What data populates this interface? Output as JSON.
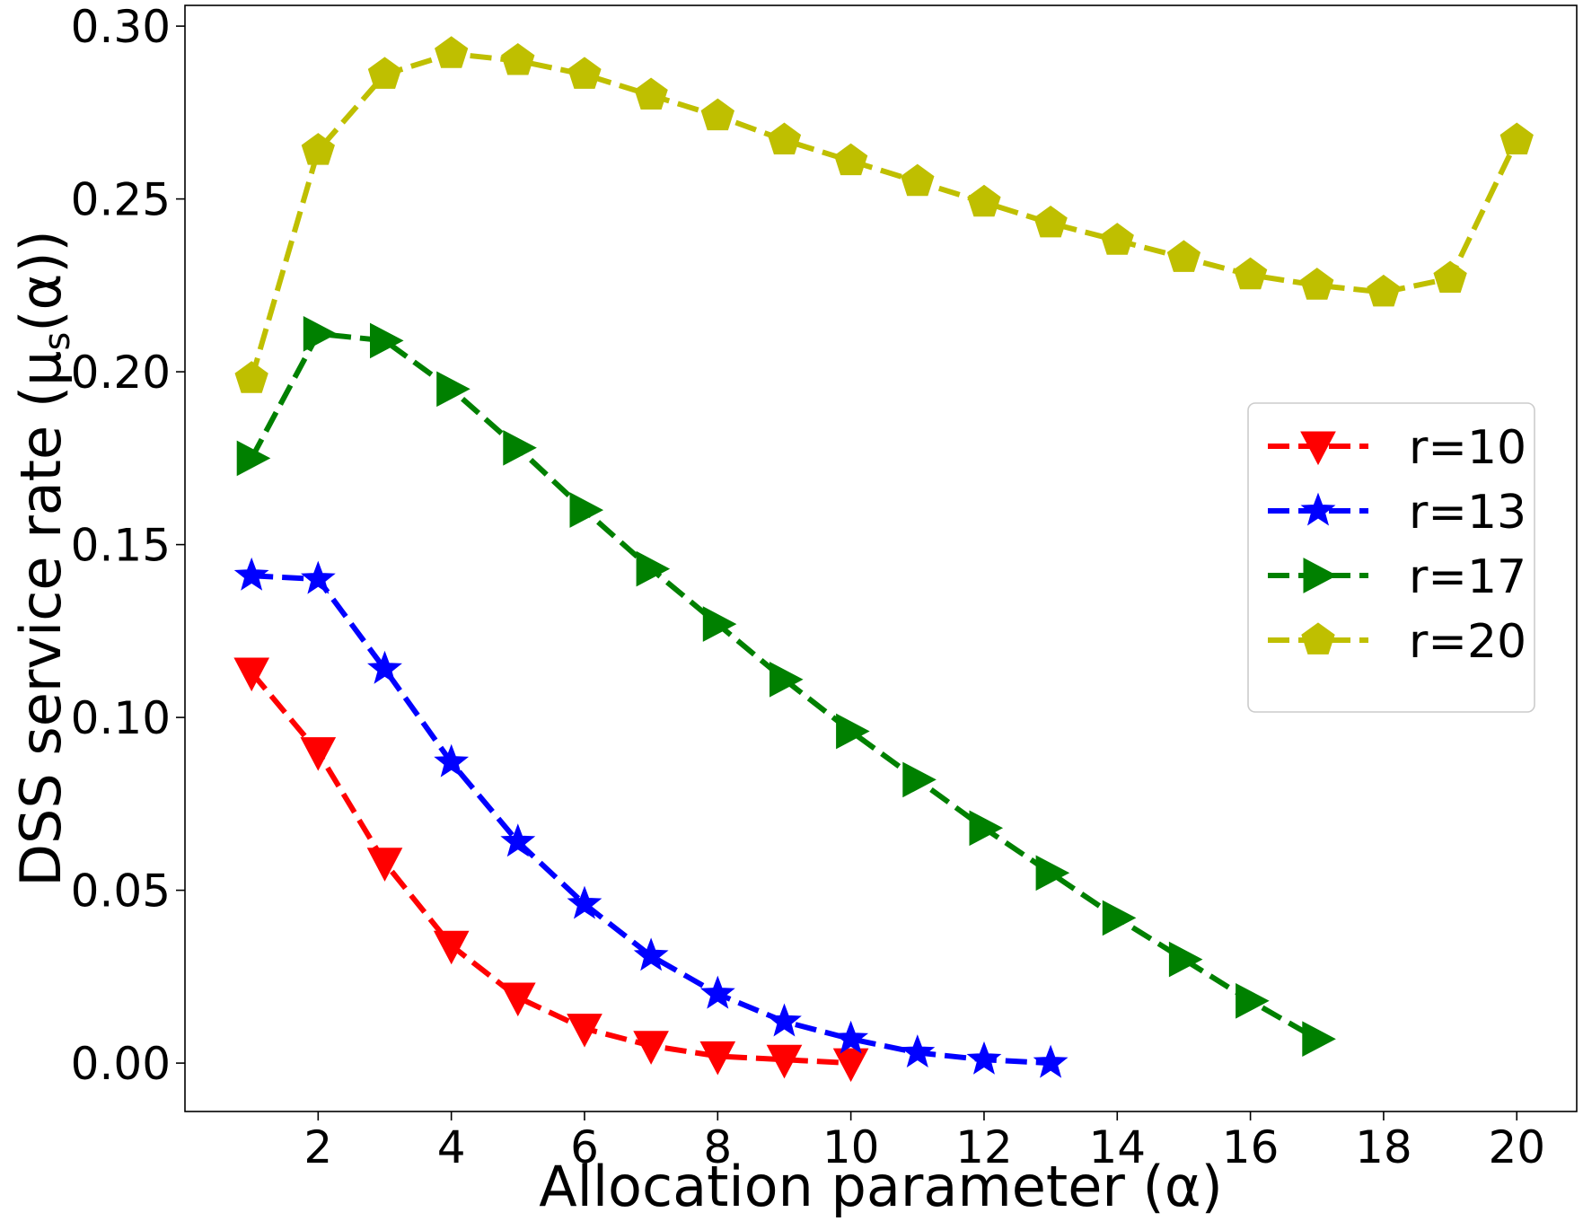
{
  "chart_data": {
    "type": "line",
    "title": "",
    "xlabel": "Allocation parameter (α)",
    "ylabel": "DSS service rate (μ",
    "ylabel_sub": "s",
    "ylabel_suffix": "(α))",
    "xlim": [
      0.0,
      20.9
    ],
    "ylim": [
      -0.014,
      0.306
    ],
    "x_ticks": [
      2,
      4,
      6,
      8,
      10,
      12,
      14,
      16,
      18,
      20
    ],
    "x_tick_labels": [
      "2",
      "4",
      "6",
      "8",
      "10",
      "12",
      "14",
      "16",
      "18",
      "20"
    ],
    "y_ticks": [
      0.0,
      0.05,
      0.1,
      0.15,
      0.2,
      0.25,
      0.3
    ],
    "y_tick_labels": [
      "0.00",
      "0.05",
      "0.10",
      "0.15",
      "0.20",
      "0.25",
      "0.30"
    ],
    "grid": false,
    "legend_position": "center-right",
    "series": [
      {
        "name": "r=10",
        "color": "#ff0000",
        "marker": "triangle-down",
        "x": [
          1,
          2,
          3,
          4,
          5,
          6,
          7,
          8,
          9,
          10
        ],
        "values": [
          0.113,
          0.09,
          0.058,
          0.034,
          0.019,
          0.01,
          0.005,
          0.002,
          0.001,
          0.0
        ]
      },
      {
        "name": "r=13",
        "color": "#0000ff",
        "marker": "star",
        "x": [
          1,
          2,
          3,
          4,
          5,
          6,
          7,
          8,
          9,
          10,
          11,
          12,
          13
        ],
        "values": [
          0.141,
          0.14,
          0.114,
          0.087,
          0.064,
          0.046,
          0.031,
          0.02,
          0.012,
          0.007,
          0.003,
          0.001,
          0.0
        ]
      },
      {
        "name": "r=17",
        "color": "#008000",
        "marker": "triangle-right",
        "x": [
          1,
          2,
          3,
          4,
          5,
          6,
          7,
          8,
          9,
          10,
          11,
          12,
          13,
          14,
          15,
          16,
          17
        ],
        "values": [
          0.175,
          0.211,
          0.209,
          0.195,
          0.178,
          0.16,
          0.143,
          0.127,
          0.111,
          0.096,
          0.082,
          0.068,
          0.055,
          0.042,
          0.03,
          0.018,
          0.007
        ]
      },
      {
        "name": "r=20",
        "color": "#bfbf00",
        "marker": "pentagon",
        "x": [
          1,
          2,
          3,
          4,
          5,
          6,
          7,
          8,
          9,
          10,
          11,
          12,
          13,
          14,
          15,
          16,
          17,
          18,
          19,
          20
        ],
        "values": [
          0.198,
          0.264,
          0.286,
          0.292,
          0.29,
          0.286,
          0.28,
          0.274,
          0.267,
          0.261,
          0.255,
          0.249,
          0.243,
          0.238,
          0.233,
          0.228,
          0.225,
          0.223,
          0.227,
          0.267
        ]
      }
    ]
  }
}
